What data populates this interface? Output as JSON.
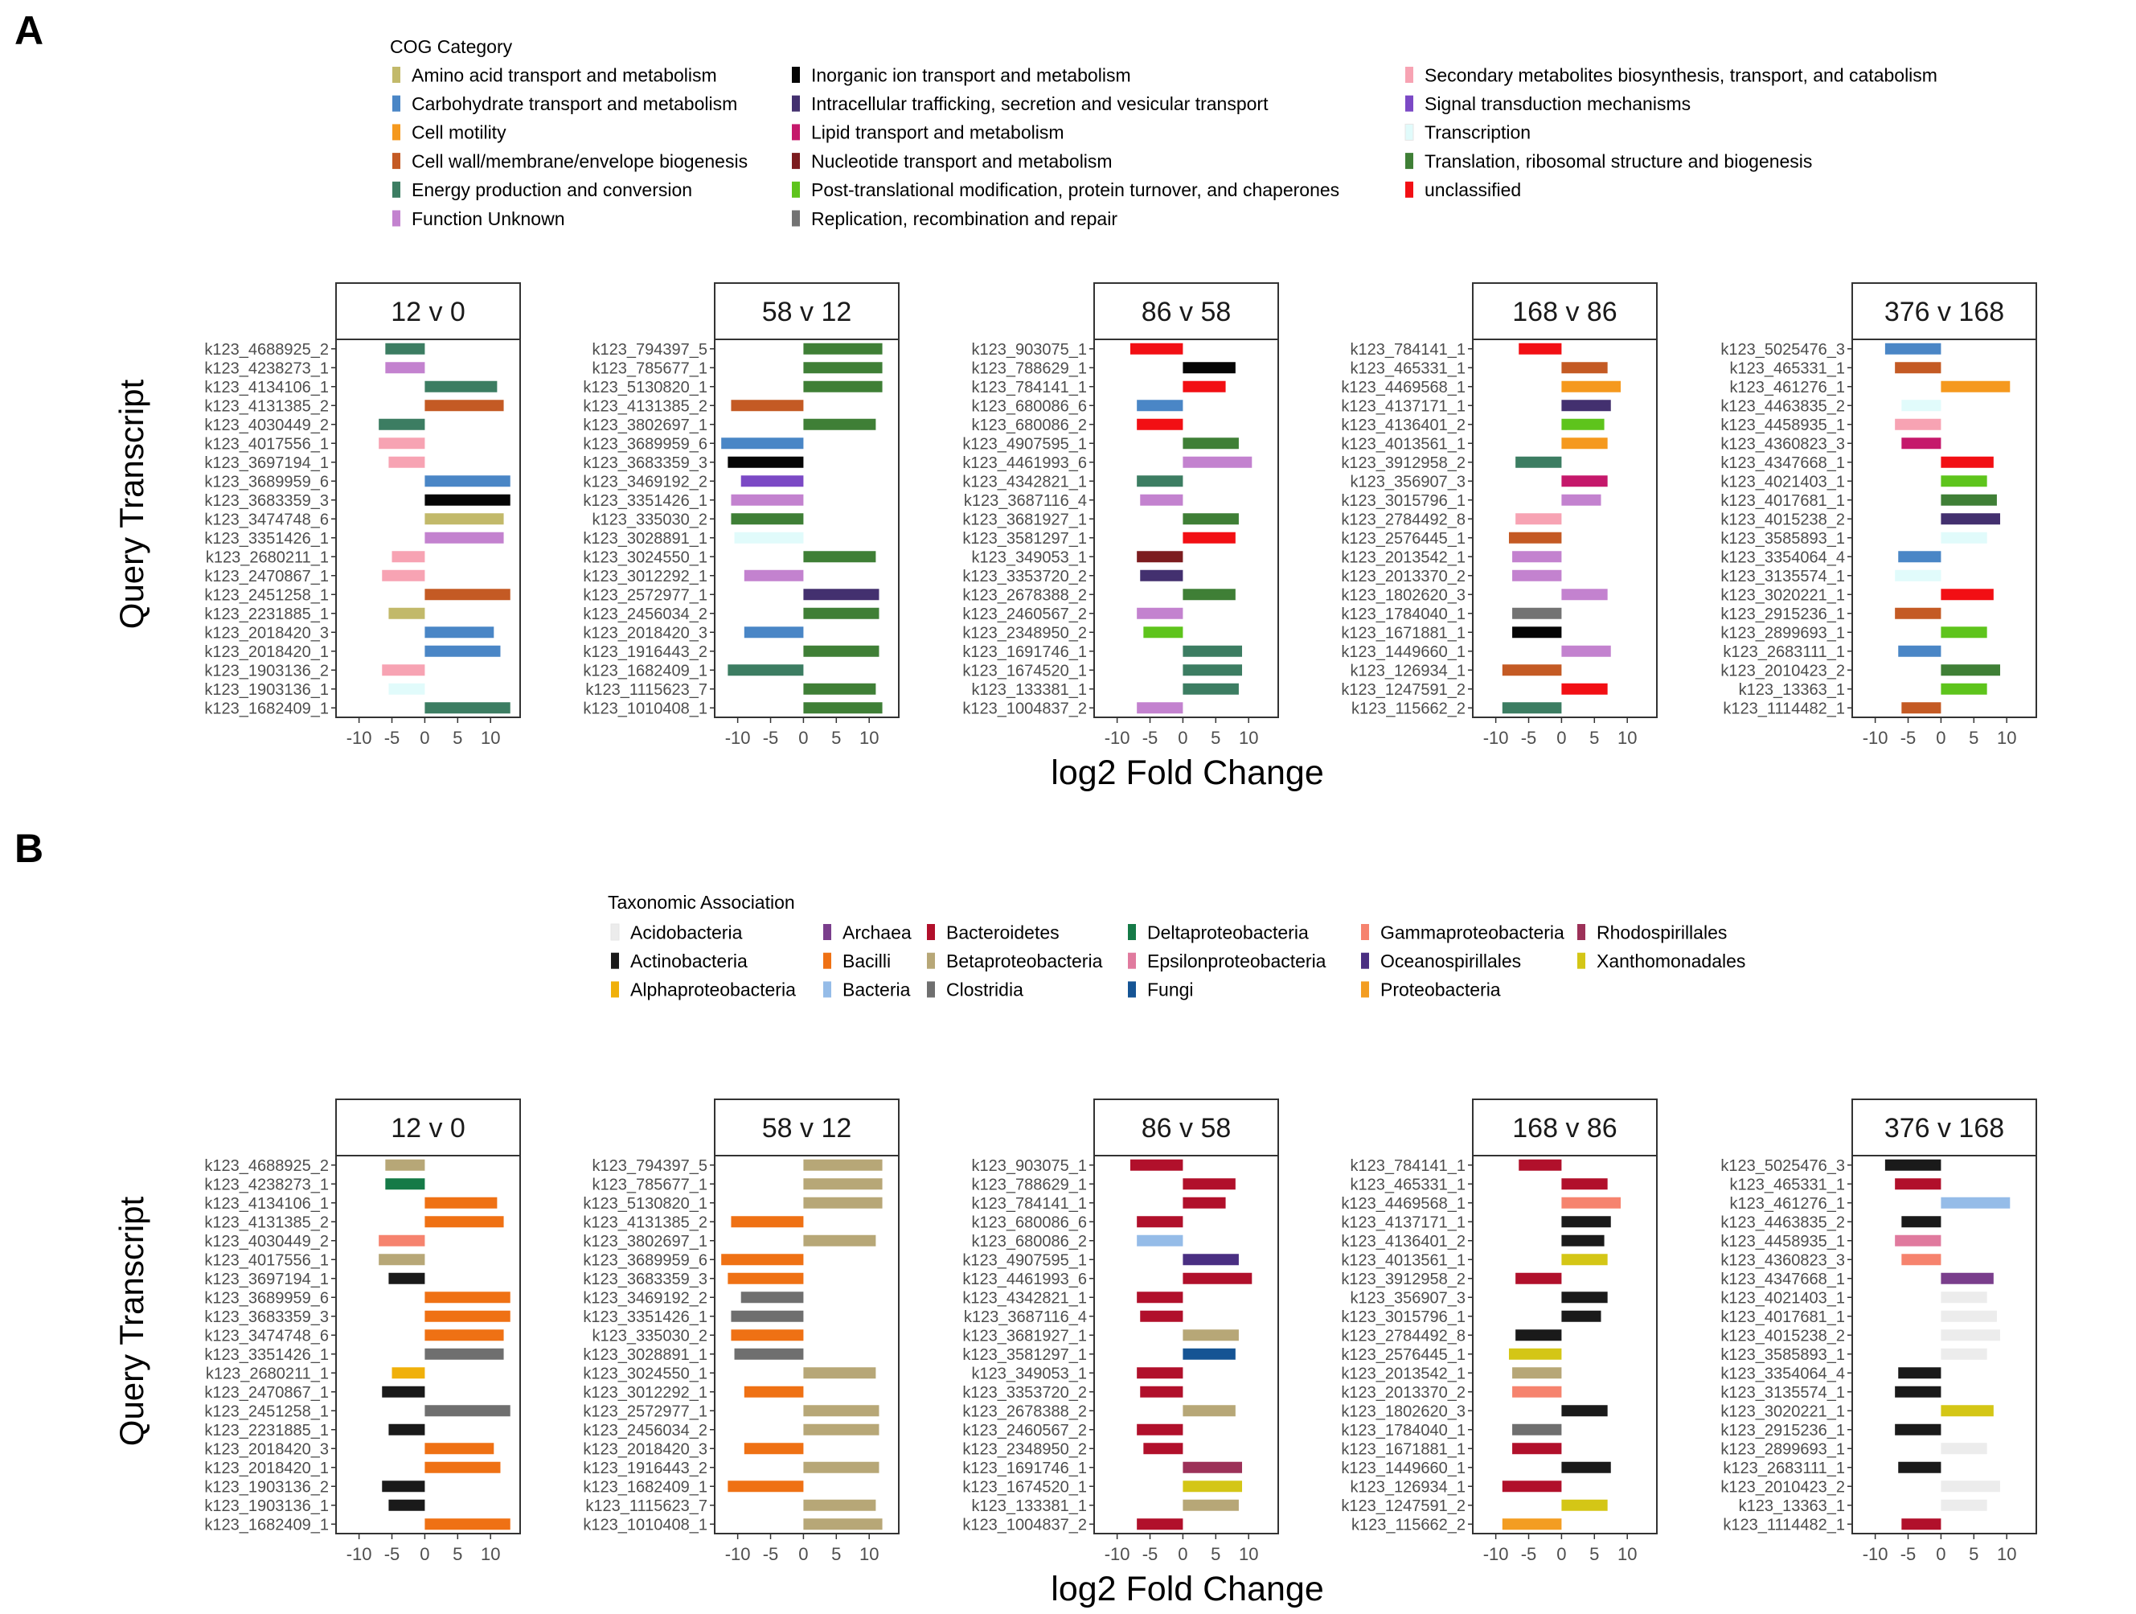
{
  "panel_labels": [
    "A",
    "B"
  ],
  "y_axis_title": "Query Transcript",
  "x_axis_title": "log2 Fold Change",
  "x_ticks": [
    -10,
    -5,
    0,
    5,
    10
  ],
  "x_lim": [
    -13.5,
    14.5
  ],
  "facets": [
    "12 v 0",
    "58 v 12",
    "86 v 58",
    "168 v 86",
    "376 v 168"
  ],
  "transcripts": [
    [
      "k123_4688925_2",
      "k123_4238273_1",
      "k123_4134106_1",
      "k123_4131385_2",
      "k123_4030449_2",
      "k123_4017556_1",
      "k123_3697194_1",
      "k123_3689959_6",
      "k123_3683359_3",
      "k123_3474748_6",
      "k123_3351426_1",
      "k123_2680211_1",
      "k123_2470867_1",
      "k123_2451258_1",
      "k123_2231885_1",
      "k123_2018420_3",
      "k123_2018420_1",
      "k123_1903136_2",
      "k123_1903136_1",
      "k123_1682409_1"
    ],
    [
      "k123_794397_5",
      "k123_785677_1",
      "k123_5130820_1",
      "k123_4131385_2",
      "k123_3802697_1",
      "k123_3689959_6",
      "k123_3683359_3",
      "k123_3469192_2",
      "k123_3351426_1",
      "k123_335030_2",
      "k123_3028891_1",
      "k123_3024550_1",
      "k123_3012292_1",
      "k123_2572977_1",
      "k123_2456034_2",
      "k123_2018420_3",
      "k123_1916443_2",
      "k123_1682409_1",
      "k123_1115623_7",
      "k123_1010408_1"
    ],
    [
      "k123_903075_1",
      "k123_788629_1",
      "k123_784141_1",
      "k123_680086_6",
      "k123_680086_2",
      "k123_4907595_1",
      "k123_4461993_6",
      "k123_4342821_1",
      "k123_3687116_4",
      "k123_3681927_1",
      "k123_3581297_1",
      "k123_349053_1",
      "k123_3353720_2",
      "k123_2678388_2",
      "k123_2460567_2",
      "k123_2348950_2",
      "k123_1691746_1",
      "k123_1674520_1",
      "k123_133381_1",
      "k123_1004837_2"
    ],
    [
      "k123_784141_1",
      "k123_465331_1",
      "k123_4469568_1",
      "k123_4137171_1",
      "k123_4136401_2",
      "k123_4013561_1",
      "k123_3912958_2",
      "k123_356907_3",
      "k123_3015796_1",
      "k123_2784492_8",
      "k123_2576445_1",
      "k123_2013542_1",
      "k123_2013370_2",
      "k123_1802620_3",
      "k123_1784040_1",
      "k123_1671881_1",
      "k123_1449660_1",
      "k123_126934_1",
      "k123_1247591_2",
      "k123_115662_2"
    ],
    [
      "k123_5025476_3",
      "k123_465331_1",
      "k123_461276_1",
      "k123_4463835_2",
      "k123_4458935_1",
      "k123_4360823_3",
      "k123_4347668_1",
      "k123_4021403_1",
      "k123_4017681_1",
      "k123_4015238_2",
      "k123_3585893_1",
      "k123_3354064_4",
      "k123_3135574_1",
      "k123_3020221_1",
      "k123_2915236_1",
      "k123_2899693_1",
      "k123_2683111_1",
      "k123_2010423_2",
      "k123_13363_1",
      "k123_1114482_1"
    ]
  ],
  "values": [
    [
      -6,
      -6,
      11,
      12,
      -7,
      -7,
      -5.5,
      13,
      13,
      12,
      12,
      -5,
      -6.5,
      13,
      -5.5,
      10.5,
      11.5,
      -6.5,
      -5.5,
      13
    ],
    [
      12,
      12,
      12,
      -11,
      11,
      -12.5,
      -11.5,
      -9.5,
      -11,
      -11,
      -10.5,
      11,
      -9,
      11.5,
      11.5,
      -9,
      11.5,
      -11.5,
      11,
      12
    ],
    [
      -8,
      8,
      6.5,
      -7,
      -7,
      8.5,
      10.5,
      -7,
      -6.5,
      8.5,
      8,
      -7,
      -6.5,
      8,
      -7,
      -6,
      9,
      9,
      8.5,
      -7
    ],
    [
      -6.5,
      7,
      9,
      7.5,
      6.5,
      7,
      -7,
      7,
      6,
      -7,
      -8,
      -7.5,
      -7.5,
      7,
      -7.5,
      -7.5,
      7.5,
      -9,
      7,
      -9
    ],
    [
      -8.5,
      -7,
      10.5,
      -6,
      -7,
      -6,
      8,
      7,
      8.5,
      9,
      7,
      -6.5,
      -7,
      8,
      -7,
      7,
      -6.5,
      9,
      7,
      -6
    ]
  ],
  "chart_data": [
    {
      "panel": "A",
      "type": "bar",
      "legend_title": "COG Category",
      "legend_placement": "top",
      "legend": [
        {
          "name": "Amino acid transport and metabolism",
          "color": "#c2b96a"
        },
        {
          "name": "Carbohydrate transport and metabolism",
          "color": "#4a86c6"
        },
        {
          "name": "Cell motility",
          "color": "#f5991e"
        },
        {
          "name": "Cell wall/membrane/envelope biogenesis",
          "color": "#c45a24"
        },
        {
          "name": "Energy production and conversion",
          "color": "#3c7d62"
        },
        {
          "name": "Function Unknown",
          "color": "#c382cf"
        },
        {
          "name": "Inorganic ion transport and metabolism",
          "color": "#050505"
        },
        {
          "name": "Intracellular trafficking, secretion and vesicular transport",
          "color": "#43306f"
        },
        {
          "name": "Lipid transport and metabolism",
          "color": "#c5186b"
        },
        {
          "name": "Nucleotide transport and metabolism",
          "color": "#7c1c1f"
        },
        {
          "name": "Post-translational modification, protein turnover, and chaperones",
          "color": "#5ec41c"
        },
        {
          "name": "Replication, recombination and repair",
          "color": "#737373"
        },
        {
          "name": "Secondary metabolites biosynthesis, transport, and catabolism",
          "color": "#f7a3b3"
        },
        {
          "name": "Signal transduction mechanisms",
          "color": "#7b49c5"
        },
        {
          "name": "Transcription",
          "color": "#e1fbfb"
        },
        {
          "name": "Translation, ribosomal structure and biogenesis",
          "color": "#3f7f36"
        },
        {
          "name": "unclassified",
          "color": "#f20f14"
        }
      ],
      "categories": [
        [
          4,
          5,
          4,
          3,
          4,
          12,
          12,
          1,
          6,
          0,
          5,
          12,
          12,
          3,
          0,
          1,
          1,
          12,
          14,
          4
        ],
        [
          15,
          15,
          15,
          3,
          15,
          1,
          6,
          13,
          5,
          15,
          14,
          15,
          5,
          7,
          15,
          1,
          15,
          4,
          15,
          15
        ],
        [
          16,
          6,
          16,
          1,
          16,
          15,
          5,
          4,
          5,
          15,
          16,
          9,
          7,
          15,
          5,
          10,
          4,
          4,
          4,
          5
        ],
        [
          16,
          3,
          2,
          7,
          10,
          2,
          4,
          8,
          5,
          12,
          3,
          5,
          5,
          5,
          11,
          6,
          5,
          3,
          16,
          4
        ],
        [
          1,
          3,
          2,
          14,
          12,
          8,
          16,
          10,
          15,
          7,
          14,
          1,
          14,
          16,
          3,
          10,
          1,
          15,
          10,
          3
        ]
      ]
    },
    {
      "panel": "B",
      "type": "bar",
      "legend_title": "Taxonomic Association",
      "legend_placement": "top",
      "legend": [
        {
          "name": "Acidobacteria",
          "color": "#ececec"
        },
        {
          "name": "Actinobacteria",
          "color": "#1a1a1a"
        },
        {
          "name": "Alphaproteobacteria",
          "color": "#f0b00a"
        },
        {
          "name": "Archaea",
          "color": "#7a3e8c"
        },
        {
          "name": "Bacilli",
          "color": "#ef7114"
        },
        {
          "name": "Bacteria",
          "color": "#95bce8"
        },
        {
          "name": "Bacteroidetes",
          "color": "#b1102b"
        },
        {
          "name": "Betaproteobacteria",
          "color": "#b7a777"
        },
        {
          "name": "Clostridia",
          "color": "#6f6f6f"
        },
        {
          "name": "Deltaproteobacteria",
          "color": "#157a47"
        },
        {
          "name": "Epsilonproteobacteria",
          "color": "#e07a9e"
        },
        {
          "name": "Fungi",
          "color": "#155494"
        },
        {
          "name": "Gammaproteobacteria",
          "color": "#f6836e"
        },
        {
          "name": "Oceanospirillales",
          "color": "#4a2f82"
        },
        {
          "name": "Proteobacteria",
          "color": "#f39d22"
        },
        {
          "name": "Rhodospirillales",
          "color": "#9c3158"
        },
        {
          "name": "Xanthomonadales",
          "color": "#d4c616"
        }
      ],
      "categories": [
        [
          7,
          9,
          4,
          4,
          12,
          7,
          1,
          4,
          4,
          4,
          8,
          2,
          1,
          8,
          1,
          4,
          4,
          1,
          1,
          4
        ],
        [
          7,
          7,
          7,
          4,
          7,
          4,
          4,
          8,
          8,
          4,
          8,
          7,
          4,
          7,
          7,
          4,
          7,
          4,
          7,
          7
        ],
        [
          6,
          6,
          6,
          6,
          5,
          13,
          6,
          6,
          6,
          7,
          11,
          6,
          6,
          7,
          6,
          6,
          15,
          16,
          7,
          6
        ],
        [
          6,
          6,
          12,
          1,
          1,
          16,
          6,
          1,
          1,
          1,
          16,
          7,
          12,
          1,
          8,
          6,
          1,
          6,
          16,
          14
        ],
        [
          1,
          6,
          5,
          1,
          10,
          12,
          3,
          0,
          0,
          0,
          0,
          1,
          1,
          16,
          1,
          0,
          1,
          0,
          0,
          6
        ]
      ]
    }
  ]
}
